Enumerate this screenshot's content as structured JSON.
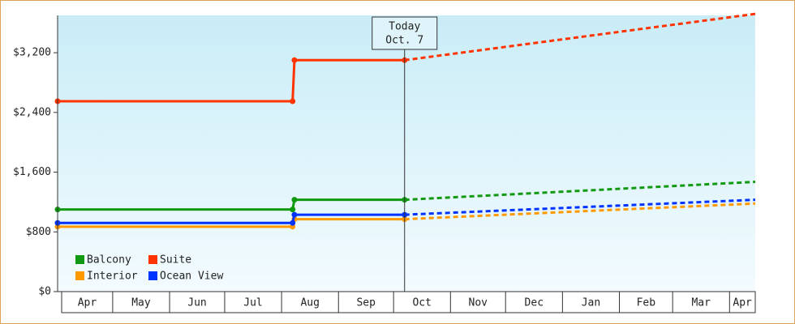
{
  "chart_data": {
    "type": "line",
    "y_ticks": [
      "$0",
      "$800",
      "$1,600",
      "$2,400",
      "$3,200"
    ],
    "y_tick_values": [
      0,
      800,
      1600,
      2400,
      3200
    ],
    "ylim": [
      0,
      3700
    ],
    "months": [
      "Apr",
      "May",
      "Jun",
      "Jul",
      "Aug",
      "Sep",
      "Oct",
      "Nov",
      "Dec",
      "Jan",
      "Feb",
      "Mar",
      "Apr"
    ],
    "x_range": [
      "2023-04-01",
      "2024-04-15"
    ],
    "today": {
      "date": "2023-10-07",
      "line1": "Today",
      "line2": "Oct. 7"
    },
    "legend_position": "bottom-left",
    "grid": false,
    "series": [
      {
        "name": "Balcony",
        "color": "#119911",
        "history": [
          [
            "2023-04-01",
            1100
          ],
          [
            "2023-08-07",
            1100
          ],
          [
            "2023-08-08",
            1230
          ],
          [
            "2023-10-07",
            1230
          ]
        ],
        "projection": [
          [
            "2023-10-07",
            1230
          ],
          [
            "2024-04-15",
            1470
          ]
        ]
      },
      {
        "name": "Suite",
        "color": "#ff3300",
        "history": [
          [
            "2023-04-01",
            2550
          ],
          [
            "2023-08-07",
            2550
          ],
          [
            "2023-08-08",
            3100
          ],
          [
            "2023-10-07",
            3100
          ]
        ],
        "projection": [
          [
            "2023-10-07",
            3100
          ],
          [
            "2024-04-15",
            3720
          ]
        ]
      },
      {
        "name": "Interior",
        "color": "#ff9900",
        "history": [
          [
            "2023-04-01",
            870
          ],
          [
            "2023-08-07",
            870
          ],
          [
            "2023-08-08",
            970
          ],
          [
            "2023-10-07",
            970
          ]
        ],
        "projection": [
          [
            "2023-10-07",
            970
          ],
          [
            "2024-04-15",
            1180
          ]
        ]
      },
      {
        "name": "Ocean View",
        "color": "#0033ff",
        "history": [
          [
            "2023-04-01",
            920
          ],
          [
            "2023-08-07",
            920
          ],
          [
            "2023-08-08",
            1030
          ],
          [
            "2023-10-07",
            1030
          ]
        ],
        "projection": [
          [
            "2023-10-07",
            1030
          ],
          [
            "2024-04-15",
            1230
          ]
        ]
      }
    ]
  }
}
